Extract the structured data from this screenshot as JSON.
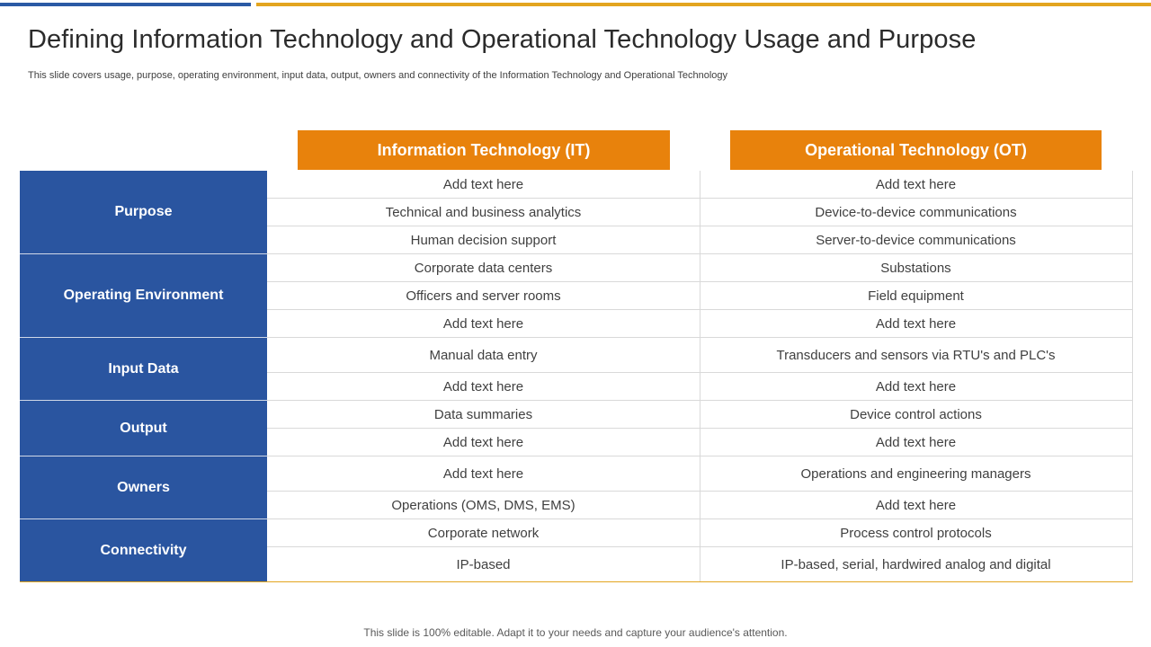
{
  "title": "Defining Information Technology and Operational Technology Usage and Purpose",
  "subtitle": "This slide covers usage, purpose, operating environment, input data, output, owners and connectivity of the Information Technology and Operational Technology",
  "columns": {
    "it": "Information Technology (IT)",
    "ot": "Operational Technology (OT)"
  },
  "groups": [
    {
      "label": "Purpose",
      "rows": [
        {
          "it": "Add text here",
          "ot": "Add text here"
        },
        {
          "it": "Technical and business analytics",
          "ot": "Device-to-device communications"
        },
        {
          "it": "Human decision support",
          "ot": "Server-to-device communications"
        }
      ]
    },
    {
      "label": "Operating Environment",
      "rows": [
        {
          "it": "Corporate data centers",
          "ot": "Substations"
        },
        {
          "it": "Officers and server rooms",
          "ot": "Field equipment"
        },
        {
          "it": "Add text here",
          "ot": "Add text here"
        }
      ]
    },
    {
      "label": "Input Data",
      "rows": [
        {
          "it": "Manual data entry",
          "ot": "Transducers and sensors via RTU's and PLC's"
        },
        {
          "it": "Add text here",
          "ot": "Add text here"
        }
      ]
    },
    {
      "label": "Output",
      "rows": [
        {
          "it": "Data summaries",
          "ot": "Device control actions"
        },
        {
          "it": "Add text here",
          "ot": "Add text here"
        }
      ]
    },
    {
      "label": "Owners",
      "rows": [
        {
          "it": "Add text here",
          "ot": "Operations and engineering managers"
        },
        {
          "it": "Operations (OMS, DMS, EMS)",
          "ot": "Add text here"
        }
      ]
    },
    {
      "label": "Connectivity",
      "rows": [
        {
          "it": "Corporate network",
          "ot": "Process control protocols"
        },
        {
          "it": "IP-based",
          "ot": "IP-based, serial, hardwired analog and digital"
        }
      ]
    }
  ],
  "footer": "This slide is 100% editable. Adapt it to your needs and capture your audience's attention.",
  "colors": {
    "accent_blue": "#2a55a0",
    "accent_orange": "#e8820c",
    "top_orange": "#e3a51f"
  }
}
